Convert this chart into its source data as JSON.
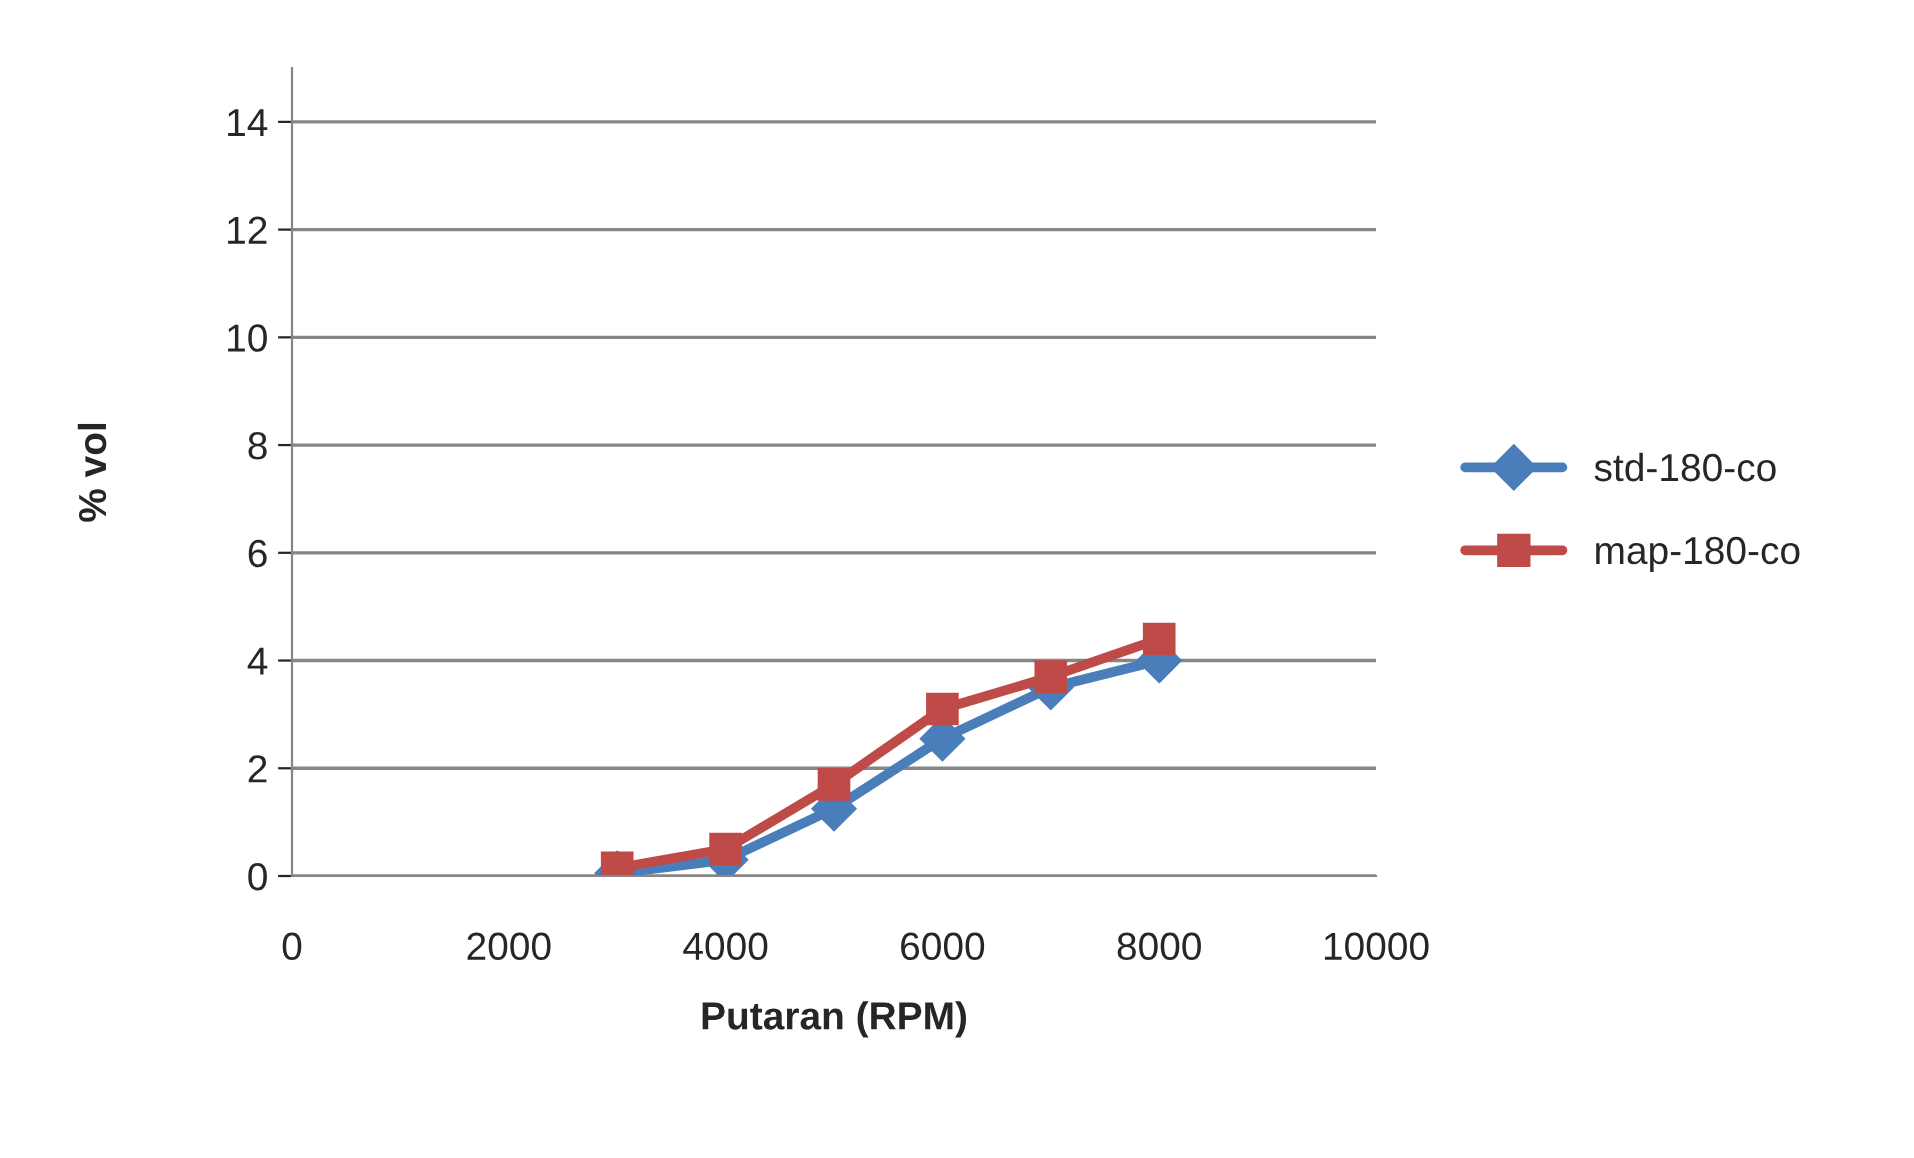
{
  "chart_data": {
    "type": "line",
    "xlabel": "Putaran (RPM)",
    "ylabel": "% vol",
    "xlim": [
      0,
      10000
    ],
    "xticks": [
      0,
      2000,
      4000,
      6000,
      8000,
      10000
    ],
    "ylim": [
      0,
      15
    ],
    "yticks": [
      0,
      2,
      4,
      6,
      8,
      10,
      12,
      14
    ],
    "grid": "y",
    "legend": "right",
    "tick_labels": true,
    "series": [
      {
        "name": "std-180-co",
        "color": "#4a7ebb",
        "marker": "diamond",
        "x": [
          3000,
          4000,
          5000,
          6000,
          7000,
          8000
        ],
        "values": [
          0.05,
          0.3,
          1.25,
          2.55,
          3.5,
          4.0
        ]
      },
      {
        "name": "map-180-co",
        "color": "#be4b48",
        "marker": "square",
        "x": [
          3000,
          4000,
          5000,
          6000,
          7000,
          8000
        ],
        "values": [
          0.15,
          0.5,
          1.7,
          3.1,
          3.7,
          4.4
        ]
      }
    ]
  }
}
